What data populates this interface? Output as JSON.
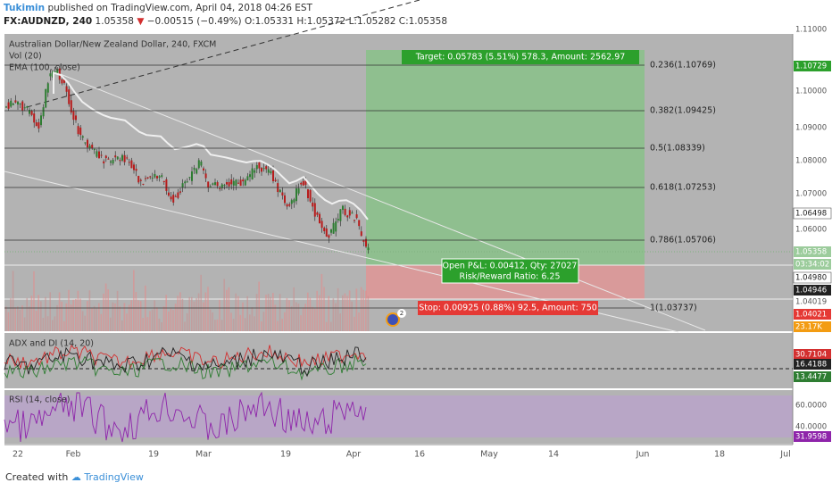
{
  "header": {
    "author": "Tukimin",
    "published": "published on TradingView.com, April 04, 2018 04:26 EST",
    "symbol": "FX:AUDNZD, 240",
    "last": "1.05358",
    "arrow": "▼",
    "change": "−0.00515 (−0.49%)",
    "open": "O:1.05331",
    "high": "H:1.05372",
    "low": "L:1.05282",
    "close": "C:1.05358"
  },
  "panes": {
    "main": "Australian Dollar/New Zealand Dollar, 240, FXCM",
    "vol": "Vol (20)",
    "ema": "EMA (100, close)",
    "adx": "ADX and DI (14, 20)",
    "rsi": "RSI (14, close)"
  },
  "fib": [
    "0.236(1.10769)",
    "0.382(1.09425)",
    "0.5(1.08339)",
    "0.618(1.07253)",
    "0.786(1.05706)",
    "1(1.03737)"
  ],
  "trade": {
    "target": "Target: 0.05783 (5.51%) 578.3, Amount: 2562.97",
    "pnl": "Open P&L: 0.00412, Qty: 27027",
    "rr": "Risk/Reward Ratio: 6.25",
    "stop": "Stop: 0.00925 (0.88%) 92.5, Amount: 750",
    "badge": "2"
  },
  "price_axis": [
    "1.11000",
    "1.10729",
    "1.10000",
    "1.09000",
    "1.08000",
    "1.07000",
    "1.06498",
    "1.06000",
    "1.05358",
    "03:34:02",
    "1.04980",
    "1.04946",
    "1.04019",
    "1.04021",
    "23.17K",
    "30.7104",
    "16.4188",
    "13.4477",
    "60.0000",
    "40.0000",
    "31.9598"
  ],
  "time_axis": [
    "22",
    "Feb",
    "19",
    "Mar",
    "19",
    "Apr",
    "16",
    "May",
    "14",
    "Jun",
    "18",
    "Jul"
  ],
  "footer": {
    "created": "Created with",
    "brand": "TradingView"
  }
}
